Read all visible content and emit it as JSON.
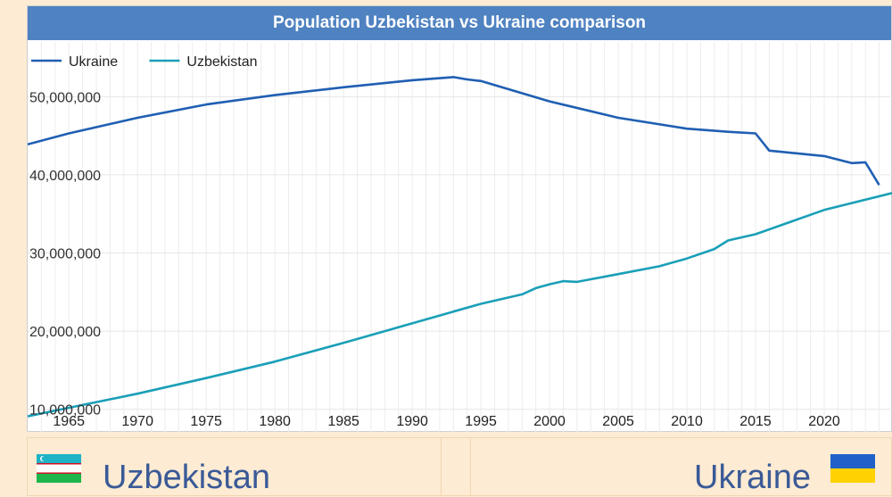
{
  "chart_data": {
    "type": "line",
    "title": "Population Uzbekistan vs Ukraine comparison",
    "xlabel": "",
    "ylabel": "",
    "xlim": [
      1962,
      2025
    ],
    "ylim": [
      7000000,
      57000000
    ],
    "x_ticks": [
      1965,
      1970,
      1975,
      1980,
      1985,
      1990,
      1995,
      2000,
      2005,
      2010,
      2015,
      2020
    ],
    "y_ticks": [
      10000000,
      20000000,
      30000000,
      40000000,
      50000000
    ],
    "y_tick_labels": [
      "10,000,000",
      "20,000,000",
      "30,000,000",
      "40,000,000",
      "50,000,000"
    ],
    "grid": true,
    "legend_position": "top-left",
    "series": [
      {
        "name": "Ukraine",
        "color": "#1f5fb3",
        "points": [
          [
            1962,
            43900000
          ],
          [
            1965,
            45300000
          ],
          [
            1970,
            47300000
          ],
          [
            1975,
            49000000
          ],
          [
            1980,
            50200000
          ],
          [
            1985,
            51200000
          ],
          [
            1990,
            52100000
          ],
          [
            1993,
            52500000
          ],
          [
            1994,
            52200000
          ],
          [
            1995,
            52000000
          ],
          [
            2000,
            49400000
          ],
          [
            2005,
            47300000
          ],
          [
            2010,
            45900000
          ],
          [
            2013,
            45500000
          ],
          [
            2015,
            45300000
          ],
          [
            2016,
            43100000
          ],
          [
            2020,
            42400000
          ],
          [
            2022,
            41500000
          ],
          [
            2023,
            41600000
          ],
          [
            2024,
            38700000
          ]
        ]
      },
      {
        "name": "Uzbekistan",
        "color": "#1a9fb8",
        "points": [
          [
            1962,
            9100000
          ],
          [
            1965,
            10200000
          ],
          [
            1970,
            12000000
          ],
          [
            1975,
            14000000
          ],
          [
            1980,
            16100000
          ],
          [
            1985,
            18500000
          ],
          [
            1990,
            21000000
          ],
          [
            1993,
            22500000
          ],
          [
            1995,
            23500000
          ],
          [
            1998,
            24700000
          ],
          [
            1999,
            25500000
          ],
          [
            2000,
            26000000
          ],
          [
            2001,
            26400000
          ],
          [
            2002,
            26300000
          ],
          [
            2005,
            27300000
          ],
          [
            2008,
            28300000
          ],
          [
            2010,
            29300000
          ],
          [
            2012,
            30500000
          ],
          [
            2013,
            31600000
          ],
          [
            2015,
            32400000
          ],
          [
            2020,
            35500000
          ],
          [
            2025,
            37700000
          ]
        ]
      }
    ]
  },
  "compare": {
    "left_country": "Uzbekistan",
    "right_country": "Ukraine",
    "left_flag_icon": "uzbekistan-flag-icon",
    "right_flag_icon": "ukraine-flag-icon"
  }
}
